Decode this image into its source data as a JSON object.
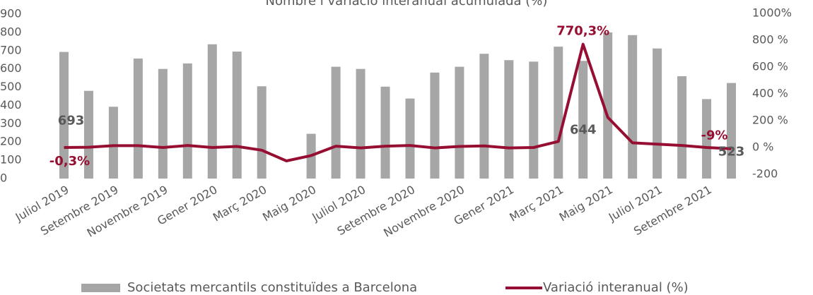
{
  "chart_data": {
    "type": "bar_line",
    "title": "Nombre i variació interanual acumulada (%)",
    "categories": [
      "Juliol 2019",
      null,
      "Setembre 2019",
      null,
      "Novembre 2019",
      null,
      "Gener 2020",
      null,
      "Març 2020",
      null,
      "Maig 2020",
      null,
      "Juliol 2020",
      null,
      "Setembre 2020",
      null,
      "Novembre 2020",
      null,
      "Gener 2021",
      null,
      "Març 2021",
      null,
      "Maig 2021",
      null,
      "Juliol 2021",
      null,
      "Setembre 2021",
      null
    ],
    "series": [
      {
        "name": "Societats mercantils constituïdes a Barcelona",
        "color": "#a6a6a6",
        "type": "bar",
        "values": [
          693,
          480,
          393,
          657,
          600,
          630,
          735,
          695,
          505,
          null,
          245,
          612,
          600,
          503,
          438,
          580,
          612,
          683,
          648,
          640,
          722,
          644,
          800,
          785,
          712,
          560,
          435,
          523
        ],
        "value_labels": [
          "693",
          null,
          null,
          null,
          null,
          null,
          null,
          null,
          null,
          null,
          null,
          null,
          null,
          null,
          null,
          null,
          null,
          null,
          null,
          null,
          null,
          "644",
          null,
          null,
          null,
          null,
          null,
          "523"
        ]
      },
      {
        "name": "Variació interanual (%)",
        "color": "#960f32",
        "type": "line",
        "axis": "y2",
        "values": [
          -0.3,
          2,
          14,
          14,
          0,
          15,
          0,
          8,
          -20,
          -100,
          -60,
          10,
          -3,
          10,
          15,
          -3,
          8,
          12,
          -3,
          0,
          45,
          770.3,
          225,
          35,
          25,
          15,
          0,
          -9
        ],
        "value_labels": [
          "-0,3%",
          null,
          null,
          null,
          null,
          null,
          null,
          null,
          null,
          null,
          null,
          null,
          null,
          null,
          null,
          null,
          null,
          null,
          null,
          null,
          null,
          "770,3%",
          null,
          null,
          null,
          null,
          null,
          "-9%"
        ]
      }
    ],
    "ylim": [
      0,
      900
    ],
    "yticks": [
      0,
      100,
      200,
      300,
      400,
      500,
      600,
      700,
      800,
      900
    ],
    "y2lim": [
      -200,
      1000
    ],
    "y2ticks": [
      -200,
      {
        "value": 0,
        "label": "0 %"
      },
      {
        "value": 200,
        "label": "200 %"
      },
      {
        "value": 400,
        "label": "400 %"
      },
      {
        "value": 600,
        "label": "600 %"
      },
      {
        "value": 800,
        "label": "800 %"
      },
      {
        "value": 1000,
        "label": "1000%"
      }
    ],
    "legend": "bottom"
  }
}
